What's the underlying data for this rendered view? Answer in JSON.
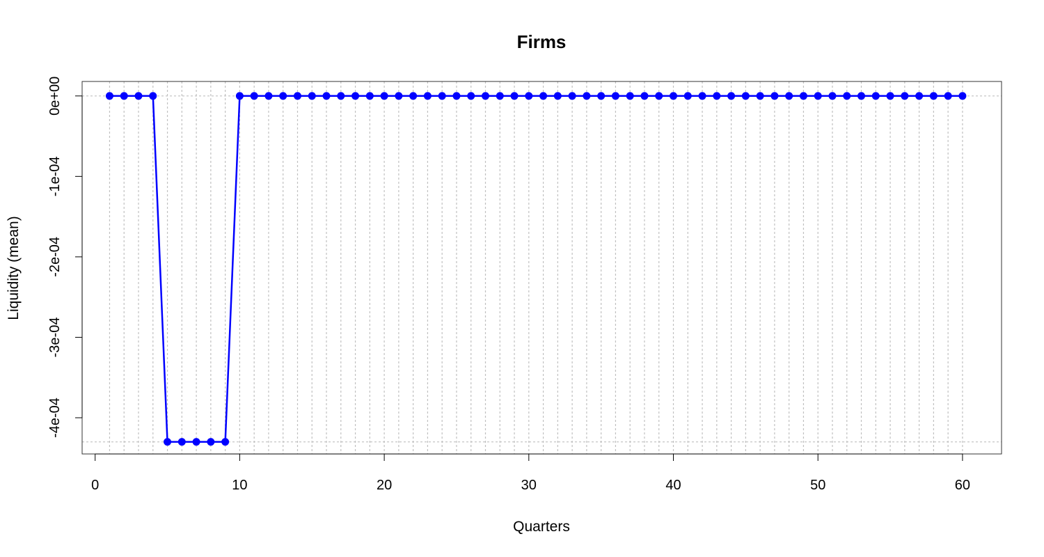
{
  "chart_data": {
    "type": "line",
    "title": "Firms",
    "xlabel": "Quarters",
    "ylabel": "Liquidity (mean)",
    "xlim": [
      -0.9,
      62.7
    ],
    "ylim": [
      -0.000445,
      1.8e-05
    ],
    "x_ticks": [
      0,
      10,
      20,
      30,
      40,
      50,
      60
    ],
    "x_tick_labels": [
      "0",
      "10",
      "20",
      "30",
      "40",
      "50",
      "60"
    ],
    "y_ticks": [
      0,
      -0.0001,
      -0.0002,
      -0.0003,
      -0.0004
    ],
    "y_tick_labels": [
      "0e+00",
      "-1e-04",
      "-2e-04",
      "-3e-04",
      "-4e-04"
    ],
    "grid": {
      "vertical_at_each_x": true,
      "horizontal_at": [
        0,
        -0.00043
      ],
      "style": "dotted",
      "color": "#c0c0c0"
    },
    "series": [
      {
        "color": "#0000ff",
        "x": [
          1,
          2,
          3,
          4,
          5,
          6,
          7,
          8,
          9,
          10,
          11,
          12,
          13,
          14,
          15,
          16,
          17,
          18,
          19,
          20,
          21,
          22,
          23,
          24,
          25,
          26,
          27,
          28,
          29,
          30,
          31,
          32,
          33,
          34,
          35,
          36,
          37,
          38,
          39,
          40,
          41,
          42,
          43,
          44,
          45,
          46,
          47,
          48,
          49,
          50,
          51,
          52,
          53,
          54,
          55,
          56,
          57,
          58,
          59,
          60
        ],
        "y": [
          0,
          0,
          0,
          0,
          -0.00043,
          -0.00043,
          -0.00043,
          -0.00043,
          -0.00043,
          0,
          0,
          0,
          0,
          0,
          0,
          0,
          0,
          0,
          0,
          0,
          0,
          0,
          0,
          0,
          0,
          0,
          0,
          0,
          0,
          0,
          0,
          0,
          0,
          0,
          0,
          0,
          0,
          0,
          0,
          0,
          0,
          0,
          0,
          0,
          0,
          0,
          0,
          0,
          0,
          0,
          0,
          0,
          0,
          0,
          0,
          0,
          0,
          0,
          0,
          0
        ]
      }
    ]
  }
}
